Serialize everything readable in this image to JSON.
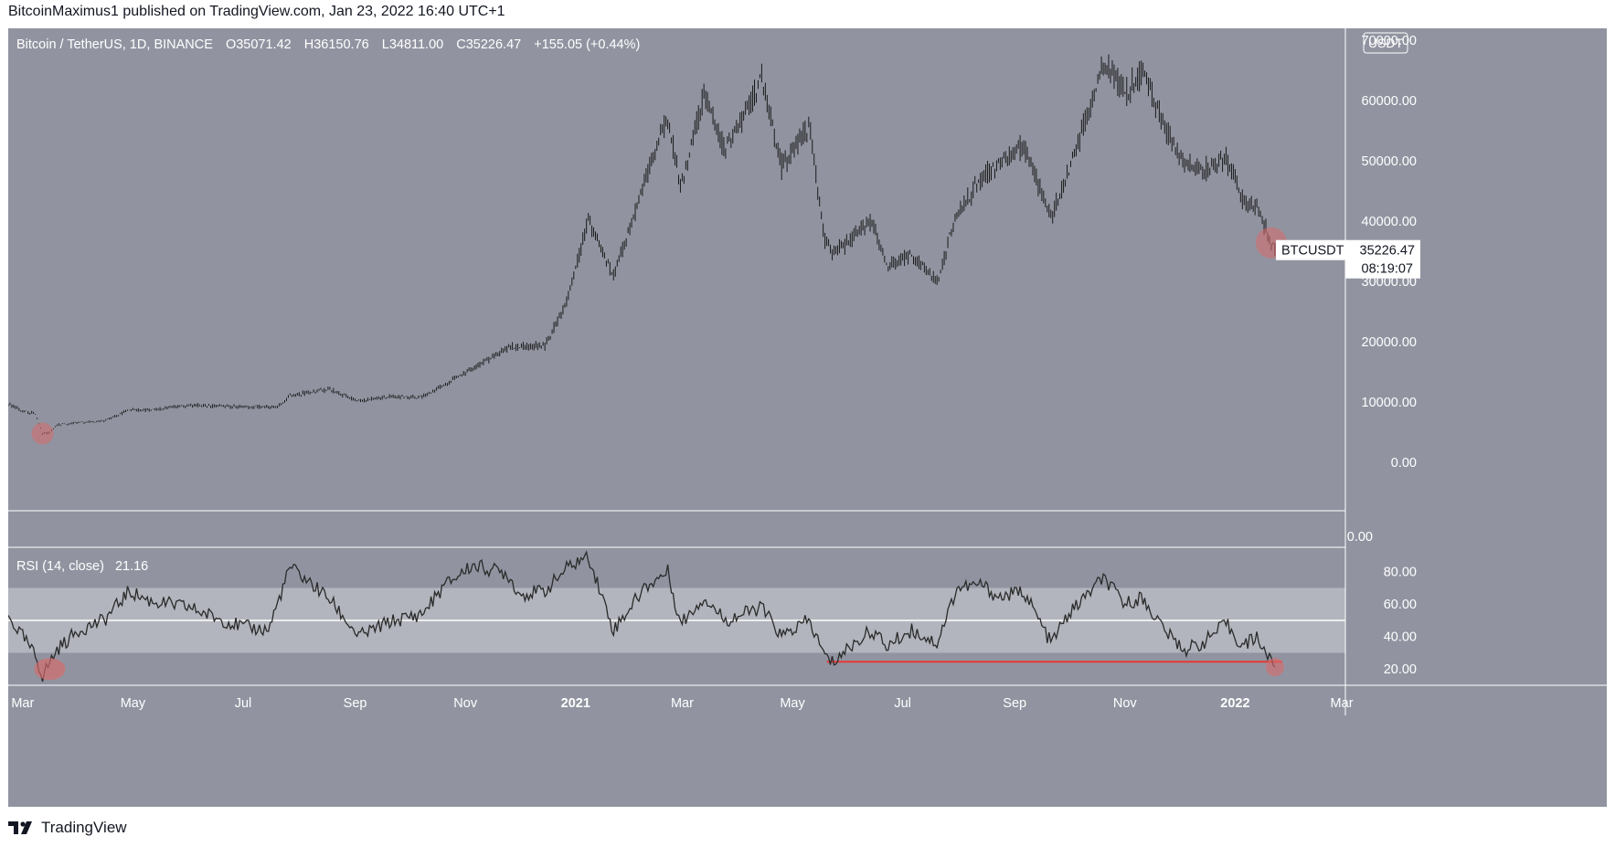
{
  "header": {
    "publisher_line": "BitcoinMaximus1 published on TradingView.com, Jan 23, 2022 16:40 UTC+1"
  },
  "footer": {
    "brand": "TradingView"
  },
  "colors": {
    "pane_bg": "#9194a0",
    "rsi_band": "#b2b5bd",
    "candle": "#1a1a1a",
    "highlight": "#d96a6a",
    "support_line": "#e53935",
    "axis_text": "#ffffff"
  },
  "legend": {
    "symbol": "Bitcoin / TetherUS, 1D, BINANCE",
    "o_label": "O",
    "o_value": "35071.42",
    "h_label": "H",
    "h_value": "36150.76",
    "l_label": "L",
    "l_value": "34811.00",
    "c_label": "C",
    "c_value": "35226.47",
    "change": "+155.05 (+0.44%)"
  },
  "currency_button": "USDT",
  "price_tag": {
    "symbol": "BTCUSDT",
    "price": "35226.47",
    "countdown": "08:19:07"
  },
  "rsi_legend": {
    "name": "RSI (14, close)",
    "value": "21.16"
  },
  "chart_data": [
    {
      "type": "ohlc",
      "title": "Bitcoin / TetherUS, 1D, BINANCE",
      "ylim": [
        -8000,
        72000
      ],
      "y_ticks": [
        "70000.00",
        "60000.00",
        "50000.00",
        "40000.00",
        "30000.00",
        "20000.00",
        "10000.00",
        "0.00"
      ],
      "y_tick_values": [
        70000,
        60000,
        50000,
        40000,
        30000,
        20000,
        10000,
        0
      ],
      "x_ticks": [
        "Mar",
        "May",
        "Jul",
        "Sep",
        "Nov",
        "2021",
        "Mar",
        "May",
        "Jul",
        "Sep",
        "Nov",
        "2022",
        "Mar"
      ],
      "x_tick_dates": [
        "2020-03-01",
        "2020-05-01",
        "2020-07-01",
        "2020-09-01",
        "2020-11-01",
        "2021-01-01",
        "2021-03-01",
        "2021-05-01",
        "2021-07-01",
        "2021-09-01",
        "2021-11-01",
        "2022-01-01",
        "2022-03-01"
      ],
      "x_range": [
        "2020-02-22",
        "2022-03-03"
      ],
      "last_price": 35226.47,
      "close_path": [
        [
          "2020-02-22",
          9700
        ],
        [
          "2020-03-01",
          8600
        ],
        [
          "2020-03-08",
          8000
        ],
        [
          "2020-03-12",
          4800
        ],
        [
          "2020-03-16",
          5000
        ],
        [
          "2020-03-20",
          6200
        ],
        [
          "2020-04-01",
          6600
        ],
        [
          "2020-04-15",
          6900
        ],
        [
          "2020-04-29",
          8800
        ],
        [
          "2020-05-10",
          8700
        ],
        [
          "2020-06-01",
          9500
        ],
        [
          "2020-06-15",
          9400
        ],
        [
          "2020-07-01",
          9200
        ],
        [
          "2020-07-20",
          9200
        ],
        [
          "2020-07-27",
          11000
        ],
        [
          "2020-08-17",
          12200
        ],
        [
          "2020-09-03",
          10200
        ],
        [
          "2020-09-20",
          10900
        ],
        [
          "2020-10-08",
          10800
        ],
        [
          "2020-10-21",
          12900
        ],
        [
          "2020-11-05",
          15600
        ],
        [
          "2020-11-24",
          19000
        ],
        [
          "2020-12-01",
          19200
        ],
        [
          "2020-12-15",
          19400
        ],
        [
          "2020-12-27",
          26500
        ],
        [
          "2021-01-08",
          40000
        ],
        [
          "2021-01-22",
          30800
        ],
        [
          "2021-02-08",
          46200
        ],
        [
          "2021-02-21",
          57500
        ],
        [
          "2021-02-28",
          45200
        ],
        [
          "2021-03-13",
          61000
        ],
        [
          "2021-03-25",
          51600
        ],
        [
          "2021-04-14",
          63500
        ],
        [
          "2021-04-25",
          49000
        ],
        [
          "2021-05-10",
          56000
        ],
        [
          "2021-05-19",
          37000
        ],
        [
          "2021-05-23",
          34800
        ],
        [
          "2021-06-01",
          36600
        ],
        [
          "2021-06-14",
          40200
        ],
        [
          "2021-06-22",
          32500
        ],
        [
          "2021-07-06",
          34200
        ],
        [
          "2021-07-20",
          29800
        ],
        [
          "2021-07-31",
          41500
        ],
        [
          "2021-08-14",
          47000
        ],
        [
          "2021-08-23",
          49500
        ],
        [
          "2021-09-06",
          52600
        ],
        [
          "2021-09-21",
          40600
        ],
        [
          "2021-10-01",
          48100
        ],
        [
          "2021-10-20",
          66000
        ],
        [
          "2021-11-01",
          61300
        ],
        [
          "2021-11-10",
          64900
        ],
        [
          "2021-11-26",
          53700
        ],
        [
          "2021-12-04",
          49300
        ],
        [
          "2021-12-14",
          48300
        ],
        [
          "2021-12-27",
          50700
        ],
        [
          "2022-01-05",
          43500
        ],
        [
          "2022-01-13",
          42600
        ],
        [
          "2022-01-21",
          36200
        ],
        [
          "2022-01-23",
          35226
        ]
      ]
    },
    {
      "type": "line",
      "title": "RSI (14, close)",
      "ylim": [
        10,
        95
      ],
      "y_ticks": [
        "80.00",
        "60.00",
        "40.00",
        "20.00"
      ],
      "y_tick_values": [
        80,
        60,
        40,
        20
      ],
      "band": [
        30,
        70
      ],
      "midline": 50,
      "last_value": 21.16,
      "support_level": 24.5,
      "support_from": "2021-05-20",
      "support_to": "2022-01-27",
      "points": [
        [
          "2020-02-22",
          52
        ],
        [
          "2020-03-01",
          40
        ],
        [
          "2020-03-08",
          28
        ],
        [
          "2020-03-12",
          16
        ],
        [
          "2020-03-20",
          32
        ],
        [
          "2020-04-01",
          44
        ],
        [
          "2020-04-15",
          50
        ],
        [
          "2020-04-29",
          68
        ],
        [
          "2020-05-10",
          62
        ],
        [
          "2020-06-01",
          58
        ],
        [
          "2020-06-15",
          52
        ],
        [
          "2020-07-01",
          46
        ],
        [
          "2020-07-15",
          44
        ],
        [
          "2020-07-27",
          83
        ],
        [
          "2020-08-17",
          64
        ],
        [
          "2020-09-03",
          40
        ],
        [
          "2020-09-20",
          49
        ],
        [
          "2020-10-08",
          54
        ],
        [
          "2020-10-21",
          72
        ],
        [
          "2020-11-05",
          84
        ],
        [
          "2020-11-24",
          79
        ],
        [
          "2020-12-01",
          66
        ],
        [
          "2020-12-15",
          68
        ],
        [
          "2020-12-27",
          82
        ],
        [
          "2021-01-08",
          90
        ],
        [
          "2021-01-22",
          44
        ],
        [
          "2021-02-08",
          70
        ],
        [
          "2021-02-21",
          80
        ],
        [
          "2021-02-28",
          48
        ],
        [
          "2021-03-13",
          64
        ],
        [
          "2021-03-25",
          50
        ],
        [
          "2021-04-14",
          58
        ],
        [
          "2021-04-25",
          40
        ],
        [
          "2021-05-10",
          50
        ],
        [
          "2021-05-19",
          28
        ],
        [
          "2021-05-23",
          24
        ],
        [
          "2021-06-01",
          33
        ],
        [
          "2021-06-14",
          44
        ],
        [
          "2021-06-22",
          34
        ],
        [
          "2021-07-06",
          44
        ],
        [
          "2021-07-20",
          36
        ],
        [
          "2021-07-31",
          70
        ],
        [
          "2021-08-14",
          72
        ],
        [
          "2021-08-23",
          64
        ],
        [
          "2021-09-06",
          68
        ],
        [
          "2021-09-21",
          36
        ],
        [
          "2021-10-01",
          54
        ],
        [
          "2021-10-20",
          76
        ],
        [
          "2021-11-01",
          60
        ],
        [
          "2021-11-10",
          64
        ],
        [
          "2021-11-26",
          40
        ],
        [
          "2021-12-04",
          32
        ],
        [
          "2021-12-14",
          36
        ],
        [
          "2021-12-27",
          48
        ],
        [
          "2022-01-05",
          34
        ],
        [
          "2022-01-13",
          40
        ],
        [
          "2022-01-21",
          24
        ],
        [
          "2022-01-23",
          21.16
        ]
      ]
    }
  ]
}
